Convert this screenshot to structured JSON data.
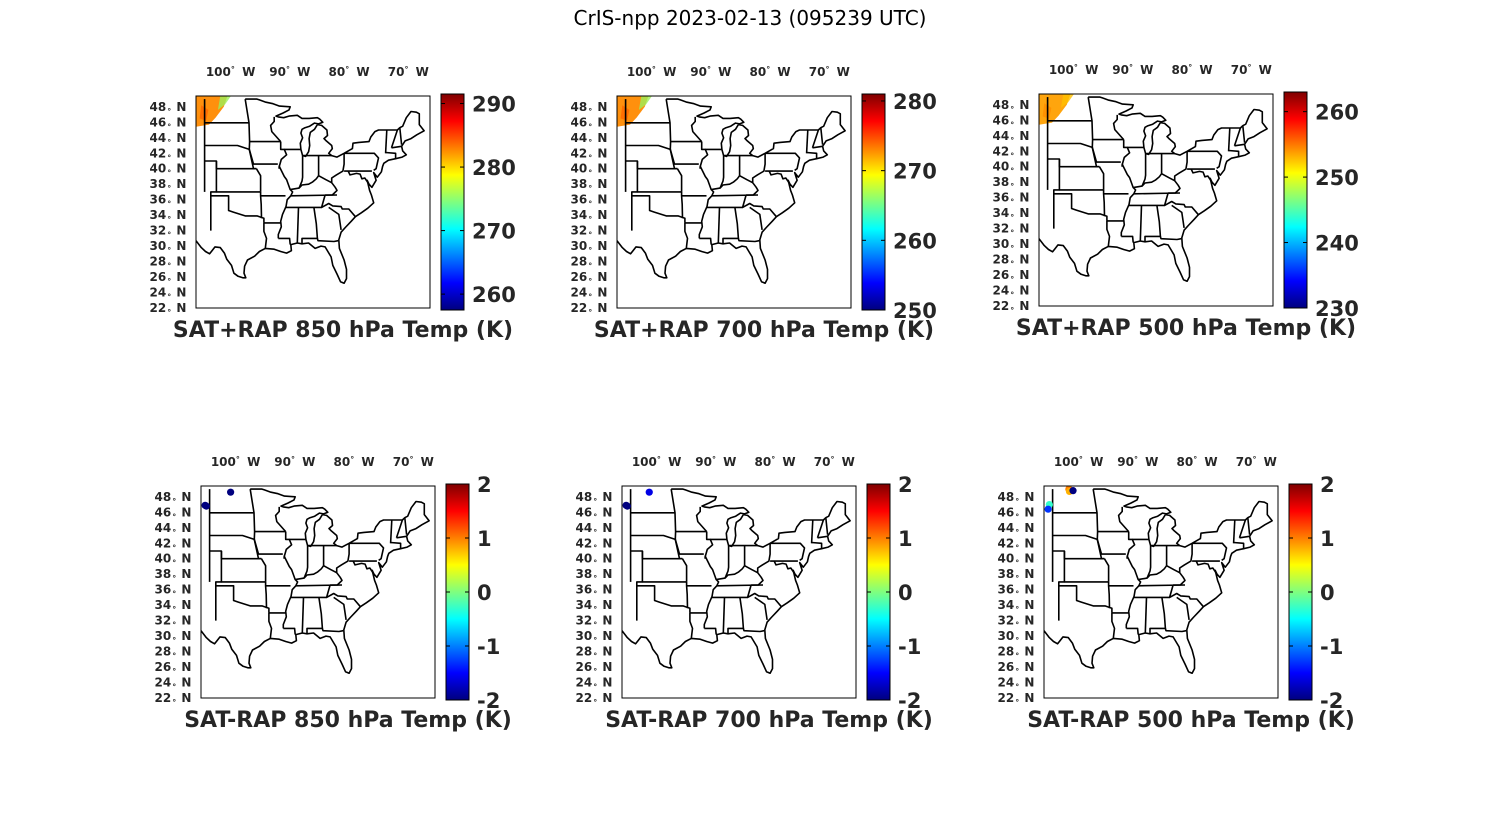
{
  "title": "CrIS-npp 2023-02-13 (095239 UTC)",
  "lon_labels": [
    "100",
    "90",
    "80",
    "70"
  ],
  "lon_suffix": "W",
  "lat_labels": [
    "48",
    "46",
    "44",
    "42",
    "40",
    "38",
    "36",
    "34",
    "32",
    "30",
    "28",
    "26",
    "24",
    "22"
  ],
  "lat_suffix": "N",
  "degree_symbol": "°",
  "colors": {
    "jet": [
      "#00007f",
      "#0000ff",
      "#007fff",
      "#00ffff",
      "#7fff7f",
      "#ffff00",
      "#ff7f00",
      "#ff0000",
      "#7f0000"
    ],
    "outline": "#000000",
    "text": "#262626"
  },
  "panels": [
    {
      "id": "sat-rap-sum-850",
      "caption": "SAT+RAP 850 hPa Temp (K)",
      "colorbar": {
        "min": 257.5,
        "max": 291.5,
        "ticks": [
          "260",
          "270",
          "280",
          "290"
        ],
        "tick_values": [
          260,
          270,
          280,
          290
        ]
      },
      "field": "swath-850"
    },
    {
      "id": "sat-rap-sum-700",
      "caption": "SAT+RAP 700 hPa Temp (K)",
      "colorbar": {
        "min": 250,
        "max": 281,
        "ticks": [
          "250",
          "260",
          "270",
          "280"
        ],
        "tick_values": [
          250,
          260,
          270,
          280
        ]
      },
      "field": "swath-700"
    },
    {
      "id": "sat-rap-sum-500",
      "caption": "SAT+RAP 500 hPa Temp (K)",
      "colorbar": {
        "min": 230,
        "max": 263,
        "ticks": [
          "230",
          "240",
          "250",
          "260"
        ],
        "tick_values": [
          230,
          240,
          250,
          260
        ]
      },
      "field": "swath-500"
    },
    {
      "id": "sat-rap-diff-850",
      "caption": "SAT-RAP 850 hPa Temp (K)",
      "colorbar": {
        "min": -2,
        "max": 2,
        "ticks": [
          "-2",
          "-1",
          "0",
          "1",
          "2"
        ],
        "tick_values": [
          -2,
          -1,
          0,
          1,
          2
        ]
      },
      "points": [
        {
          "lon": -104.8,
          "lat": 46.9,
          "value": -2
        },
        {
          "lon": -104.6,
          "lat": 46.8,
          "value": -2
        },
        {
          "lon": -100.5,
          "lat": 48.6,
          "value": -2
        }
      ]
    },
    {
      "id": "sat-rap-diff-700",
      "caption": "SAT-RAP 700 hPa Temp (K)",
      "colorbar": {
        "min": -2,
        "max": 2,
        "ticks": [
          "-2",
          "-1",
          "0",
          "1",
          "2"
        ],
        "tick_values": [
          -2,
          -1,
          0,
          1,
          2
        ]
      },
      "points": [
        {
          "lon": -104.8,
          "lat": 46.9,
          "value": -2
        },
        {
          "lon": -104.6,
          "lat": 46.8,
          "value": -2
        },
        {
          "lon": -100.9,
          "lat": 48.6,
          "value": -1.6
        }
      ]
    },
    {
      "id": "sat-rap-diff-500",
      "caption": "SAT-RAP 500 hPa Temp (K)",
      "colorbar": {
        "min": -2,
        "max": 2,
        "ticks": [
          "-2",
          "-1",
          "0",
          "1",
          "2"
        ],
        "tick_values": [
          -2,
          -1,
          0,
          1,
          2
        ]
      },
      "points": [
        {
          "lon": -104.6,
          "lat": 47.0,
          "value": -0.3
        },
        {
          "lon": -104.8,
          "lat": 46.4,
          "value": -1.3
        },
        {
          "lon": -101.3,
          "lat": 49.0,
          "value": 1.0
        },
        {
          "lon": -101.2,
          "lat": 48.7,
          "value": 0.8
        },
        {
          "lon": -100.6,
          "lat": 48.8,
          "value": -2
        }
      ]
    }
  ]
}
